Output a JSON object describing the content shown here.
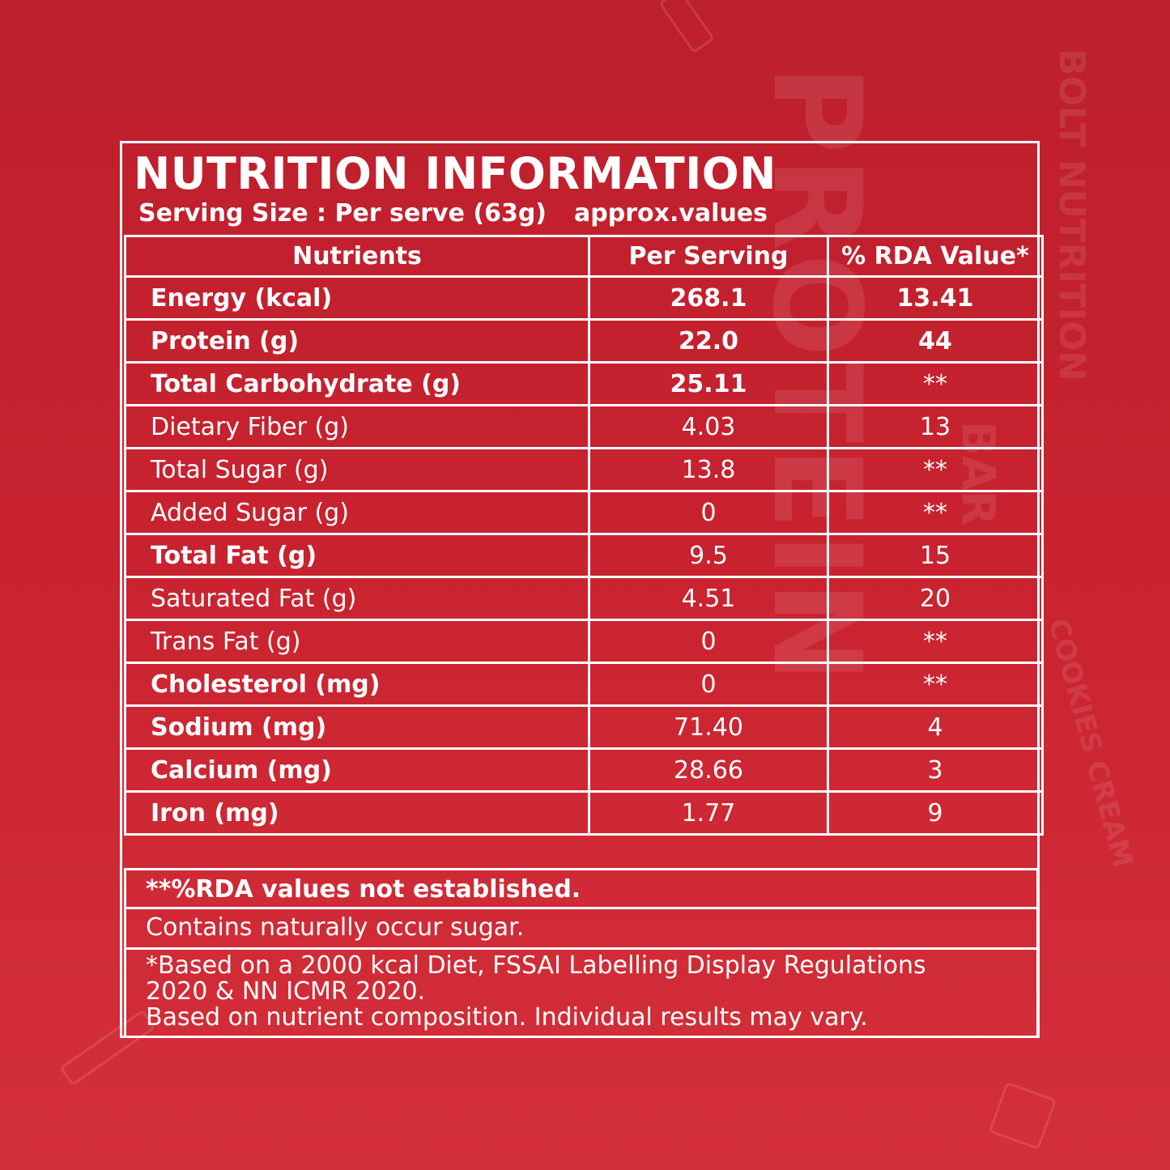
{
  "background_art": {
    "product": "PROTEIN",
    "brand": "BOLT NUTRITION",
    "bar": "BAR",
    "flavor": "COOKIES CREAM"
  },
  "header": {
    "title": "NUTRITION INFORMATION",
    "serving": "Serving Size : Per serve (63g)",
    "approx": "approx.values"
  },
  "columns": {
    "nutrients": "Nutrients",
    "per_serving": "Per Serving",
    "rda": "% RDA Value*"
  },
  "rows": [
    {
      "name": "Energy (kcal)",
      "serving": "268.1",
      "rda": "13.41"
    },
    {
      "name": "Protein (g)",
      "serving": "22.0",
      "rda": "44"
    },
    {
      "name": "Total Carbohydrate (g)",
      "serving": "25.11",
      "rda": "**"
    },
    {
      "name": "Dietary Fiber (g)",
      "serving": "4.03",
      "rda": "13"
    },
    {
      "name": "Total Sugar (g)",
      "serving": "13.8",
      "rda": "**"
    },
    {
      "name": "Added Sugar (g)",
      "serving": "0",
      "rda": "**"
    },
    {
      "name": "Total Fat (g)",
      "serving": "9.5",
      "rda": "15"
    },
    {
      "name": "Saturated Fat (g)",
      "serving": "4.51",
      "rda": "20"
    },
    {
      "name": "Trans Fat (g)",
      "serving": "0",
      "rda": "**"
    },
    {
      "name": "Cholesterol (mg)",
      "serving": "0",
      "rda": "**"
    },
    {
      "name": "Sodium (mg)",
      "serving": "71.40",
      "rda": "4"
    },
    {
      "name": "Calcium (mg)",
      "serving": "28.66",
      "rda": "3"
    },
    {
      "name": "Iron (mg)",
      "serving": "1.77",
      "rda": "9"
    }
  ],
  "notes": {
    "rda_note": "**%RDA values not established.",
    "sugar_note": "Contains naturally occur sugar.",
    "basis_line1": "*Based on a 2000 kcal Diet, FSSAI Labelling Display Regulations",
    "basis_line2": "2020 & NN ICMR 2020.",
    "basis_line3": "Based on nutrient composition. Individual results may vary."
  },
  "colors": {
    "background_top": "#bd1f2d",
    "background_bottom": "#d4303a",
    "lines": "#ffffff"
  }
}
